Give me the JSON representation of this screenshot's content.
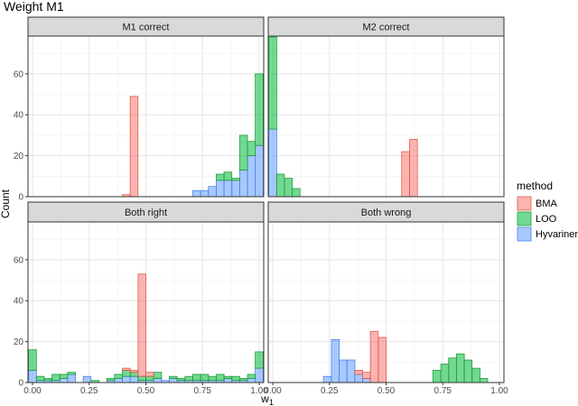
{
  "chart_data": {
    "type": "bar",
    "title": "Weight M1",
    "xlabel": "w",
    "xlabel_subscript": "1",
    "ylabel": "Count",
    "xlim": [
      -0.02,
      1.02
    ],
    "ylim": [
      0,
      78
    ],
    "x_ticks": [
      0.0,
      0.25,
      0.5,
      0.75,
      1.0
    ],
    "x_tick_labels": [
      "0.00",
      "0.25",
      "0.50",
      "0.75",
      "1.00"
    ],
    "y_ticks": [
      0,
      20,
      40,
      60
    ],
    "y_tick_labels": [
      "0",
      "20",
      "40",
      "60"
    ],
    "grid": true,
    "bin_width": 0.0345,
    "legend": {
      "title": "method",
      "placement": "right",
      "entries": [
        {
          "name": "BMA",
          "fill": "#F8766D"
        },
        {
          "name": "LOO",
          "fill": "#00BA38"
        },
        {
          "name": "Hyvarinen",
          "fill": "#619CFF"
        }
      ]
    },
    "panels": [
      {
        "label": "M1 correct",
        "series": [
          {
            "name": "BMA",
            "bins": [
              [
                0.414,
                1
              ],
              [
                0.448,
                49
              ]
            ]
          },
          {
            "name": "LOO",
            "bins": [
              [
                0.828,
                3
              ],
              [
                0.862,
                4
              ],
              [
                0.897,
                1
              ],
              [
                0.931,
                17
              ],
              [
                0.966,
                7
              ],
              [
                1.0,
                35
              ]
            ]
          },
          {
            "name": "Hyvarinen",
            "bins": [
              [
                0.724,
                3
              ],
              [
                0.759,
                3
              ],
              [
                0.793,
                5
              ],
              [
                0.828,
                8
              ],
              [
                0.862,
                8
              ],
              [
                0.897,
                8
              ],
              [
                0.931,
                13
              ],
              [
                0.966,
                20
              ],
              [
                1.0,
                25
              ]
            ]
          }
        ]
      },
      {
        "label": "M2 correct",
        "series": [
          {
            "name": "BMA",
            "bins": [
              [
                0.586,
                22
              ],
              [
                0.621,
                28
              ]
            ]
          },
          {
            "name": "LOO",
            "bins": [
              [
                0.0,
                45
              ],
              [
                0.034,
                11
              ],
              [
                0.069,
                9
              ],
              [
                0.103,
                4
              ]
            ]
          },
          {
            "name": "Hyvarinen",
            "bins": [
              [
                0.0,
                33
              ]
            ]
          }
        ]
      },
      {
        "label": "Both right",
        "series": [
          {
            "name": "BMA",
            "bins": [
              [
                0.414,
                1
              ],
              [
                0.448,
                1
              ],
              [
                0.483,
                50
              ],
              [
                0.517,
                2
              ]
            ]
          },
          {
            "name": "LOO",
            "bins": [
              [
                0.0,
                10
              ],
              [
                0.034,
                2
              ],
              [
                0.069,
                1
              ],
              [
                0.103,
                3
              ],
              [
                0.138,
                2
              ],
              [
                0.172,
                1
              ],
              [
                0.276,
                1
              ],
              [
                0.345,
                1
              ],
              [
                0.379,
                2
              ],
              [
                0.414,
                3
              ],
              [
                0.448,
                2
              ],
              [
                0.483,
                2
              ],
              [
                0.517,
                2
              ],
              [
                0.552,
                3
              ],
              [
                0.621,
                1
              ],
              [
                0.655,
                1
              ],
              [
                0.69,
                2
              ],
              [
                0.724,
                3
              ],
              [
                0.759,
                3
              ],
              [
                0.793,
                2
              ],
              [
                0.828,
                3
              ],
              [
                0.862,
                1
              ],
              [
                0.897,
                2
              ],
              [
                0.931,
                1
              ],
              [
                0.966,
                2
              ],
              [
                1.0,
                8
              ]
            ]
          },
          {
            "name": "Hyvarinen",
            "bins": [
              [
                0.0,
                6
              ],
              [
                0.034,
                1
              ],
              [
                0.069,
                1
              ],
              [
                0.103,
                1
              ],
              [
                0.138,
                2
              ],
              [
                0.172,
                4
              ],
              [
                0.241,
                3
              ],
              [
                0.345,
                1
              ],
              [
                0.379,
                2
              ],
              [
                0.414,
                3
              ],
              [
                0.448,
                3
              ],
              [
                0.483,
                1
              ],
              [
                0.517,
                1
              ],
              [
                0.552,
                2
              ],
              [
                0.586,
                1
              ],
              [
                0.621,
                2
              ],
              [
                0.655,
                1
              ],
              [
                0.69,
                1
              ],
              [
                0.724,
                1
              ],
              [
                0.759,
                1
              ],
              [
                0.793,
                1
              ],
              [
                0.828,
                1
              ],
              [
                0.862,
                2
              ],
              [
                0.897,
                1
              ],
              [
                0.931,
                1
              ],
              [
                0.966,
                2
              ],
              [
                1.0,
                7
              ]
            ]
          }
        ]
      },
      {
        "label": "Both wrong",
        "series": [
          {
            "name": "BMA",
            "bins": [
              [
                0.379,
                2
              ],
              [
                0.414,
                3
              ],
              [
                0.448,
                25
              ],
              [
                0.483,
                22
              ]
            ]
          },
          {
            "name": "LOO",
            "bins": [
              [
                0.724,
                6
              ],
              [
                0.759,
                9
              ],
              [
                0.793,
                12
              ],
              [
                0.828,
                14
              ],
              [
                0.862,
                11
              ],
              [
                0.897,
                7
              ],
              [
                0.931,
                2
              ]
            ]
          },
          {
            "name": "Hyvarinen",
            "bins": [
              [
                0.241,
                3
              ],
              [
                0.276,
                21
              ],
              [
                0.31,
                11
              ],
              [
                0.345,
                11
              ],
              [
                0.379,
                4
              ],
              [
                0.414,
                2
              ]
            ]
          }
        ]
      }
    ]
  }
}
